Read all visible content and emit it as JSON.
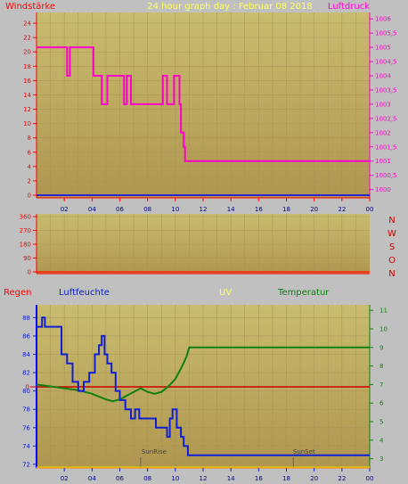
{
  "window": {
    "background": "#c0c0c0"
  },
  "panels": {
    "wind": {
      "left_label": "Windstärke",
      "title": "24 hour graph day : Februar 08 2018",
      "right_label": "Luftdruck"
    },
    "direction": {
      "compass_labels": [
        "N",
        "W",
        "S",
        "O",
        "N"
      ]
    },
    "weather": {
      "labels": {
        "rain": "Regen",
        "humidity": "Luftfeuchte",
        "uv": "UV",
        "temperature": "Temperatur"
      },
      "annotations": {
        "sunrise": "SunRise",
        "sunset": "SunSet"
      }
    }
  },
  "colors": {
    "plot_top": "#c8bc6e",
    "plot_bottom": "#b09650",
    "wind_left": "#ff0000",
    "pressure": "#ff00cc",
    "direction": "#ff2000",
    "rain": "#cc0000",
    "humidity": "#1020d0",
    "uv": "#dcdc00",
    "temperature": "#108010",
    "title": "#ffff60"
  },
  "chart_data": [
    {
      "type": "line",
      "name": "wind-pressure",
      "x_ticks": [
        "02",
        "04",
        "06",
        "08",
        "10",
        "12",
        "14",
        "16",
        "18",
        "20",
        "22",
        "00"
      ],
      "y_left_ticks": [
        "0",
        "2",
        "4",
        "6",
        "8",
        "10",
        "12",
        "14",
        "16",
        "18",
        "20",
        "22",
        "24"
      ],
      "y_left_range": [
        0,
        25
      ],
      "y_right_ticks": [
        "1000",
        "1000,5",
        "1001",
        "1001,5",
        "1002",
        "1002,5",
        "1003",
        "1003,5",
        "1004",
        "1004,5",
        "1005",
        "1005,5",
        "1006"
      ],
      "y_right_range": [
        999.8,
        1006.1
      ],
      "series": [
        {
          "name": "Luftdruck",
          "axis": "right",
          "x": [
            0,
            2.2,
            2.2,
            2.4,
            2.4,
            2.6,
            2.6,
            4.1,
            4.1,
            4.7,
            4.7,
            5.1,
            5.1,
            6.3,
            6.3,
            6.5,
            6.5,
            6.8,
            6.8,
            9.1,
            9.1,
            9.4,
            9.4,
            9.9,
            9.9,
            10.3,
            10.3,
            10.4,
            10.4,
            10.6,
            10.6,
            10.7,
            10.7,
            24
          ],
          "y": [
            1005,
            1005,
            1004,
            1004,
            1005,
            1005,
            1005,
            1005,
            1004,
            1004,
            1003,
            1003,
            1004,
            1004,
            1003,
            1003,
            1004,
            1004,
            1003,
            1003,
            1004,
            1004,
            1003,
            1003,
            1004,
            1004,
            1003,
            1003,
            1002,
            1002,
            1001.5,
            1001.5,
            1001,
            1001
          ]
        }
      ]
    },
    {
      "type": "line",
      "name": "wind-direction",
      "x_ticks": [
        "02",
        "04",
        "06",
        "08",
        "10",
        "12",
        "14",
        "16",
        "18",
        "20",
        "22",
        "00"
      ],
      "y_ticks": [
        "0",
        "90",
        "180",
        "270",
        "360"
      ],
      "y_range": [
        0,
        360
      ],
      "series": [
        {
          "name": "Windrichtung",
          "x": [
            0,
            24
          ],
          "y": [
            0,
            0
          ]
        }
      ]
    },
    {
      "type": "line",
      "name": "weather",
      "x_ticks": [
        "02",
        "04",
        "06",
        "08",
        "10",
        "12",
        "14",
        "16",
        "18",
        "20",
        "22",
        "00"
      ],
      "y_humidity_ticks": [
        "72",
        "74",
        "76",
        "78",
        "80",
        "82",
        "84",
        "86",
        "88"
      ],
      "y_humidity_range": [
        71.8,
        89.2
      ],
      "y_rain_ticks": [
        "0"
      ],
      "y_temp_ticks": [
        "3",
        "4",
        "5",
        "6",
        "7",
        "8",
        "9",
        "10",
        "11"
      ],
      "y_temp_range": [
        2.6,
        11.2
      ],
      "sunrise_x": 7.5,
      "sunset_x": 18.5,
      "series": [
        {
          "name": "Luftfeuchte",
          "x": [
            0,
            0.4,
            0.4,
            0.6,
            0.6,
            0.8,
            0.8,
            1.8,
            1.8,
            2.2,
            2.2,
            2.6,
            2.6,
            3.0,
            3.0,
            3.4,
            3.4,
            3.8,
            3.8,
            4.2,
            4.2,
            4.5,
            4.5,
            4.7,
            4.7,
            4.9,
            4.9,
            5.1,
            5.1,
            5.4,
            5.4,
            5.7,
            5.7,
            6.0,
            6.0,
            6.4,
            6.4,
            6.8,
            6.8,
            7.1,
            7.1,
            7.4,
            7.4,
            7.8,
            7.8,
            8.2,
            8.2,
            8.6,
            8.6,
            9.0,
            9.0,
            9.4,
            9.4,
            9.6,
            9.6,
            9.8,
            9.8,
            10.1,
            10.1,
            10.4,
            10.4,
            10.6,
            10.6,
            10.9,
            10.9,
            24
          ],
          "y": [
            87,
            87,
            88,
            88,
            87,
            87,
            87,
            87,
            84,
            84,
            83,
            83,
            81,
            81,
            80,
            80,
            81,
            81,
            82,
            82,
            84,
            84,
            85,
            85,
            86,
            86,
            84,
            84,
            83,
            83,
            82,
            82,
            80,
            80,
            79,
            79,
            78,
            78,
            77,
            77,
            78,
            78,
            77,
            77,
            77,
            77,
            77,
            77,
            76,
            76,
            76,
            76,
            75,
            75,
            77,
            77,
            78,
            78,
            76,
            76,
            75,
            75,
            74,
            74,
            73,
            73
          ]
        },
        {
          "name": "Regen",
          "x": [
            0,
            24
          ],
          "y": [
            0,
            0
          ]
        },
        {
          "name": "UV",
          "x": [
            0,
            24
          ],
          "y": [
            0,
            0
          ]
        },
        {
          "name": "Temperatur",
          "x": [
            0,
            1,
            2,
            3,
            4,
            5,
            5.5,
            6,
            6.5,
            7,
            7.5,
            8,
            8.5,
            9,
            9.5,
            10,
            10.5,
            10.8,
            11,
            11.2,
            24
          ],
          "y": [
            7.0,
            6.9,
            6.8,
            6.7,
            6.5,
            6.2,
            6.1,
            6.2,
            6.4,
            6.6,
            6.8,
            6.6,
            6.5,
            6.6,
            6.9,
            7.3,
            8.0,
            8.5,
            9.0,
            9.0,
            9.0
          ]
        }
      ]
    }
  ]
}
